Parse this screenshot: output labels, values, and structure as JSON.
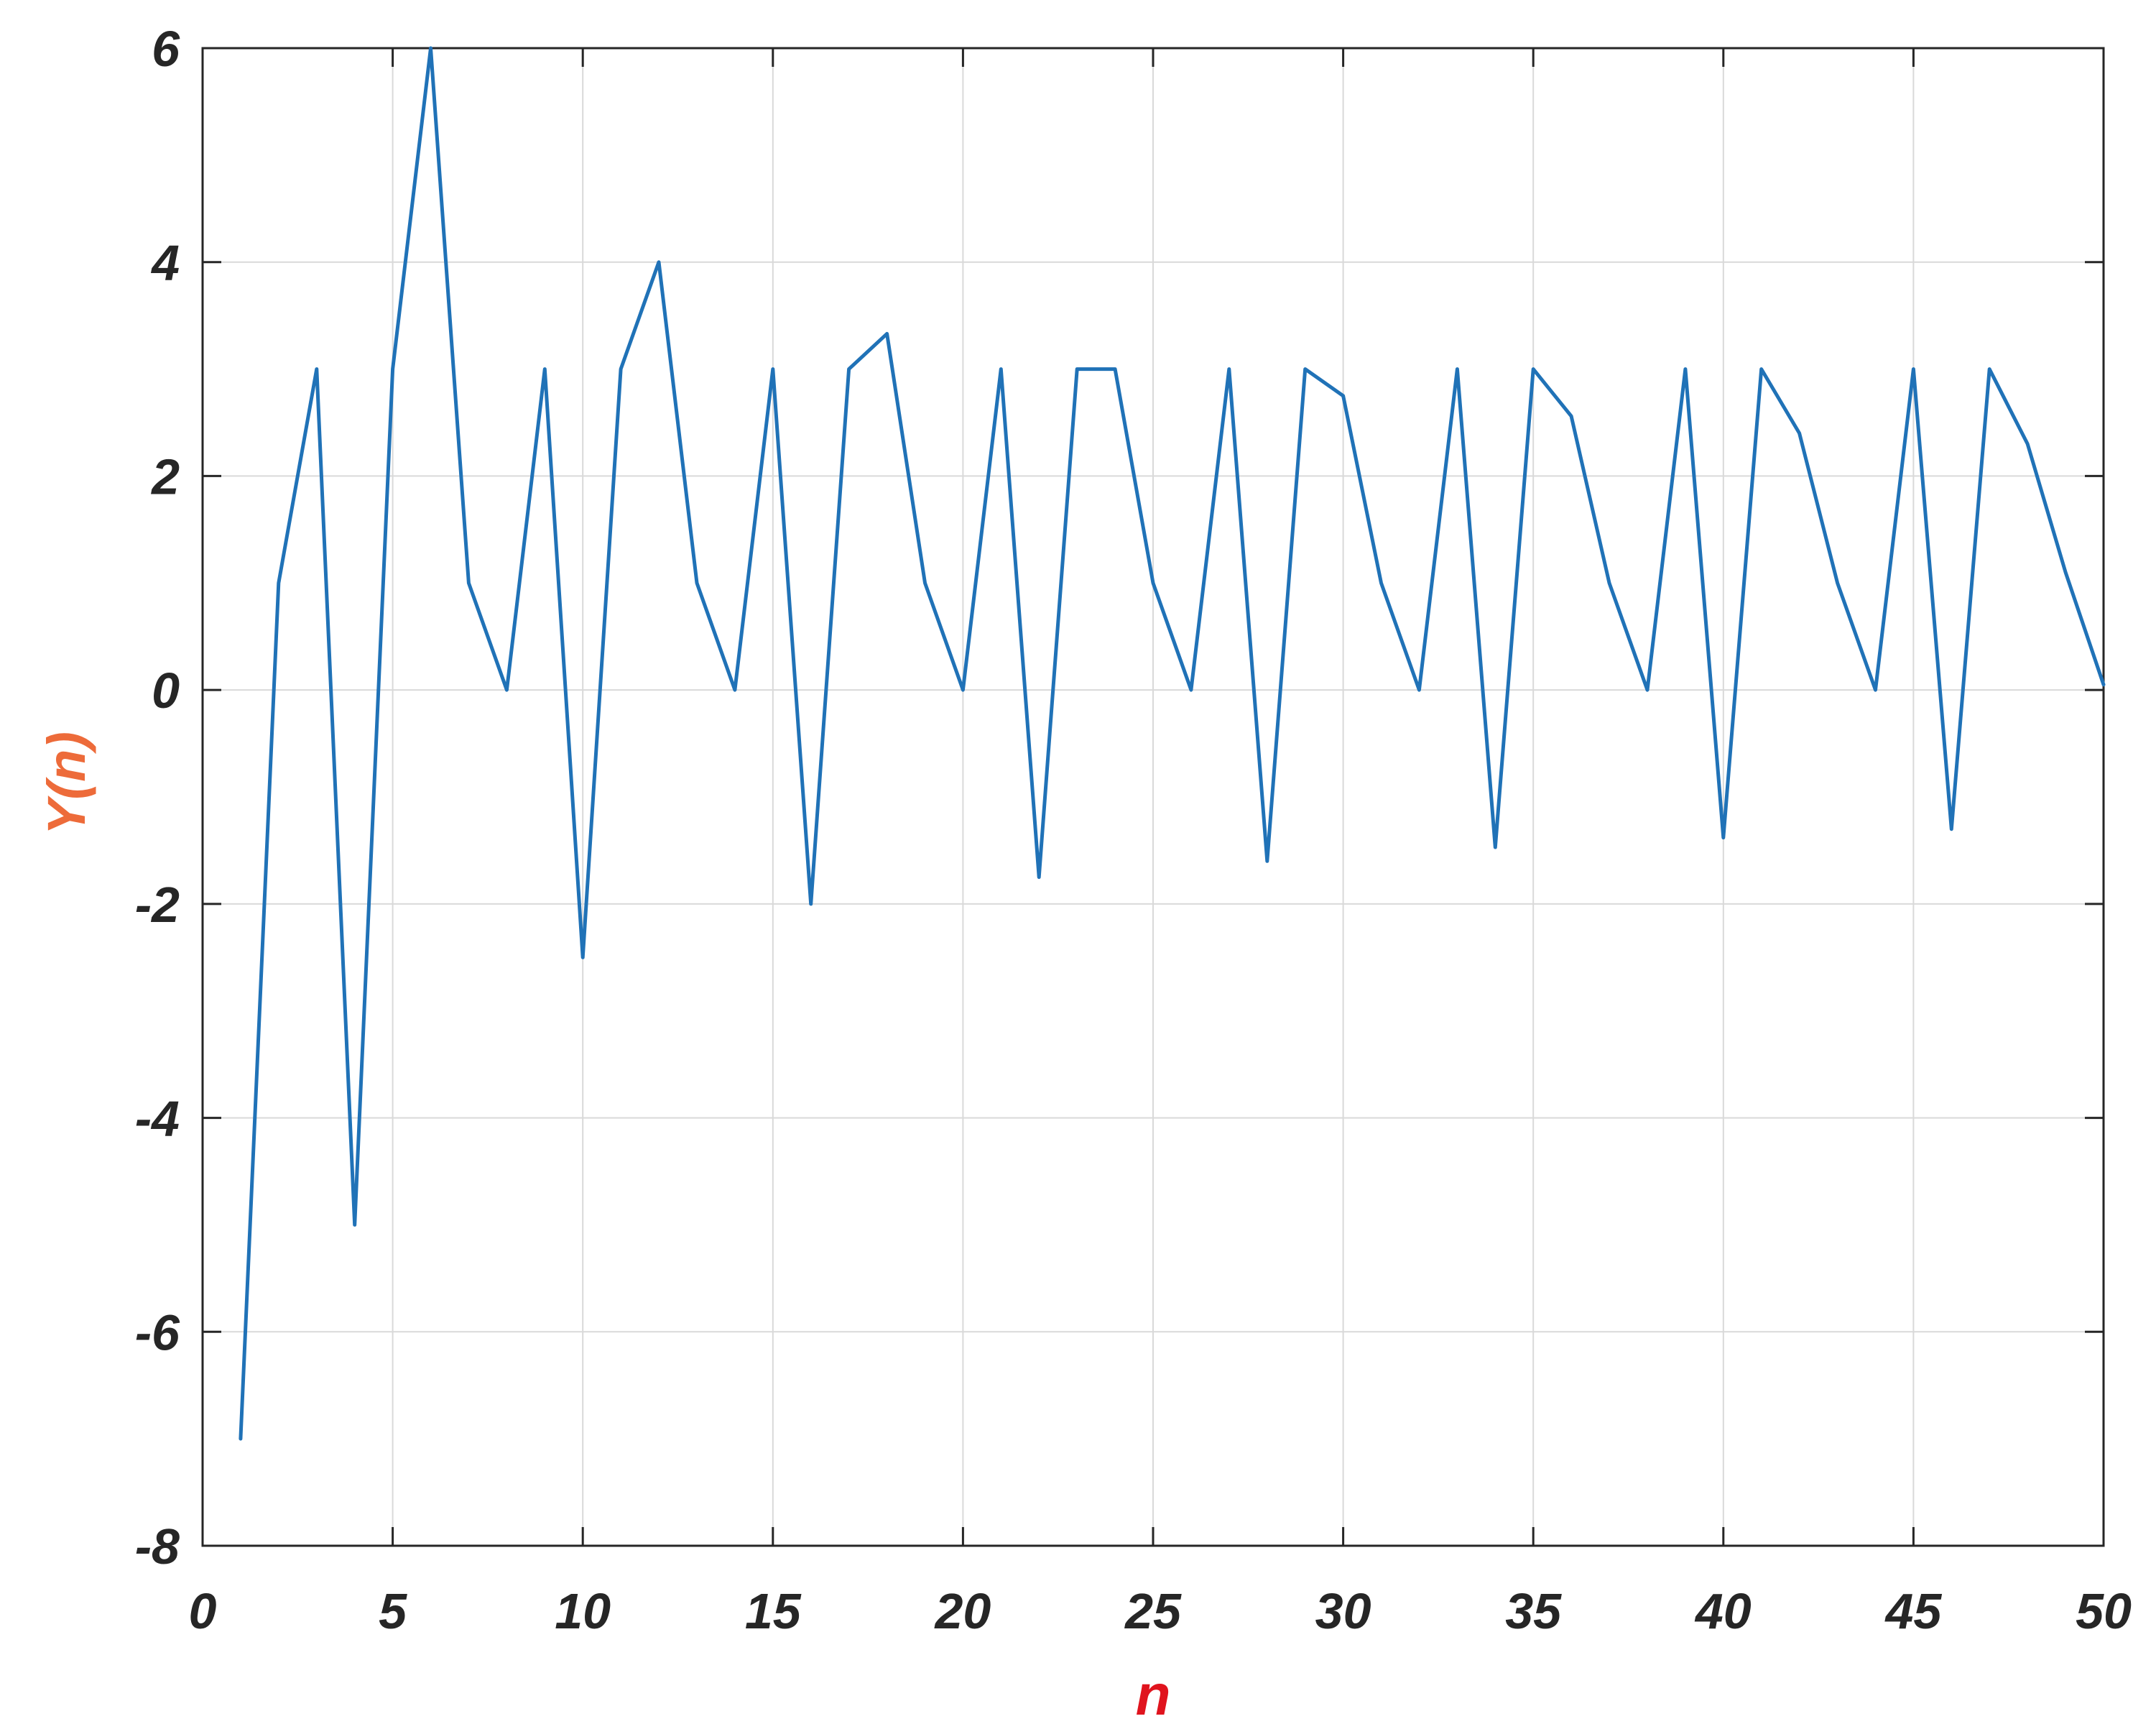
{
  "chart_data": {
    "type": "line",
    "title": "",
    "xlabel": "n",
    "ylabel": "Y(n)",
    "xlim": [
      0,
      50
    ],
    "ylim": [
      -8,
      6
    ],
    "xticks": [
      0,
      5,
      10,
      15,
      20,
      25,
      30,
      35,
      40,
      45,
      50
    ],
    "yticks": [
      -8,
      -6,
      -4,
      -2,
      0,
      2,
      4,
      6
    ],
    "xtick_labels": [
      "0",
      "5",
      "10",
      "15",
      "20",
      "25",
      "30",
      "35",
      "40",
      "45",
      "50"
    ],
    "ytick_labels": [
      "-8",
      "-6",
      "-4",
      "-2",
      "0",
      "2",
      "4",
      "6"
    ],
    "grid": true,
    "colors": {
      "line": "#2072b7",
      "ylabel": "#ed6b3a",
      "xlabel": "#e0141e",
      "ticks": "#262626",
      "grid": "#d9d9d9",
      "axes": "#262626"
    },
    "series": [
      {
        "x": [
          1,
          2,
          3,
          4,
          5,
          6,
          7,
          8,
          9,
          10,
          11,
          12,
          13,
          14,
          15,
          16,
          17,
          18,
          19,
          20,
          21,
          22,
          23,
          24,
          25,
          26,
          27,
          28,
          29,
          30,
          31,
          32,
          33,
          34,
          35,
          36,
          37,
          38,
          39,
          40,
          41,
          42,
          43,
          44,
          45,
          46,
          47,
          48,
          49,
          50
        ],
        "values": [
          -7,
          1,
          3,
          -5,
          3,
          6,
          1,
          0,
          3,
          -2.5,
          3,
          4,
          1,
          0,
          3,
          -2,
          3,
          3.33,
          1,
          0,
          3,
          -1.75,
          3,
          3,
          1,
          0,
          3,
          -1.6,
          3,
          2.75,
          1,
          0,
          3,
          -1.47,
          3,
          2.56,
          1,
          0,
          3,
          -1.38,
          3,
          2.4,
          1,
          0,
          3,
          -1.3,
          3,
          2.3,
          1.1,
          0.05
        ]
      }
    ]
  }
}
